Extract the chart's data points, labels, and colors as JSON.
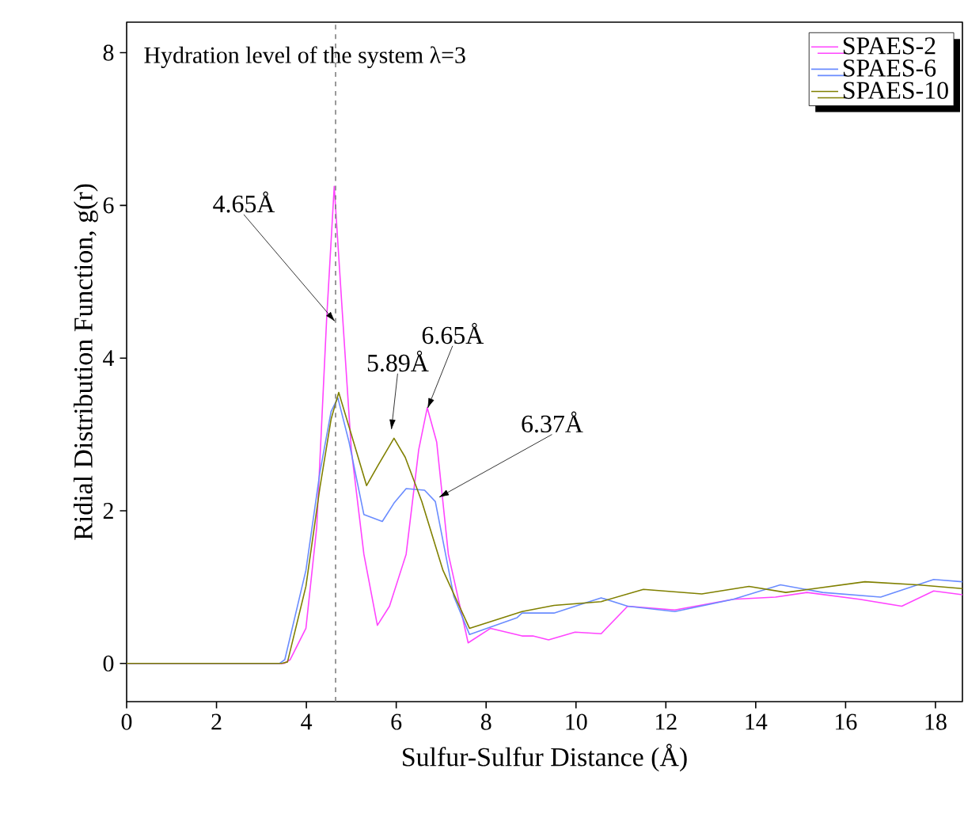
{
  "chart_data": {
    "type": "line",
    "xlabel": "Sulfur-Sulfur Distance (Å)",
    "ylabel": "Ridial Distribution Function, g(r)",
    "xlim": [
      0,
      18.6
    ],
    "xticks": [
      0,
      2,
      4,
      6,
      8,
      10,
      12,
      14,
      16,
      18
    ],
    "ylim": [
      -0.5,
      8.4
    ],
    "yticks": [
      0,
      2,
      4,
      6,
      8
    ],
    "grid": false,
    "legend": "top right",
    "marker": "none",
    "line_style": "solid",
    "series": [
      {
        "name": "SPAES-2",
        "color": "#ff44ff",
        "x": [
          0,
          3.5,
          3.64,
          3.99,
          4.23,
          4.45,
          4.62,
          4.8,
          5.0,
          5.28,
          5.58,
          5.85,
          6.22,
          6.5,
          6.69,
          6.9,
          7.16,
          7.6,
          8.1,
          8.8,
          9.04,
          9.39,
          9.98,
          10.56,
          11.15,
          12.2,
          13.5,
          14.44,
          15.14,
          16.31,
          17.25,
          17.96,
          18.6
        ],
        "values": [
          0,
          0,
          0.05,
          0.46,
          1.78,
          4.5,
          6.25,
          4.6,
          2.8,
          1.43,
          0.5,
          0.75,
          1.43,
          2.8,
          3.35,
          2.9,
          1.43,
          0.27,
          0.46,
          0.36,
          0.36,
          0.31,
          0.41,
          0.39,
          0.75,
          0.7,
          0.84,
          0.87,
          0.93,
          0.84,
          0.75,
          0.95,
          0.9
        ]
      },
      {
        "name": "SPAES-6",
        "color": "#6a8cff",
        "x": [
          0,
          3.4,
          3.52,
          3.99,
          4.3,
          4.55,
          4.7,
          4.95,
          5.28,
          5.69,
          5.95,
          6.22,
          6.63,
          6.87,
          7.28,
          7.63,
          8.69,
          8.8,
          9.51,
          10.56,
          11.15,
          12.2,
          13.5,
          14.55,
          15.49,
          16.78,
          17.96,
          18.6
        ],
        "values": [
          0,
          0,
          0.05,
          1.22,
          2.5,
          3.3,
          3.48,
          2.9,
          1.95,
          1.86,
          2.1,
          2.29,
          2.27,
          2.12,
          0.88,
          0.38,
          0.6,
          0.66,
          0.66,
          0.86,
          0.75,
          0.68,
          0.84,
          1.03,
          0.93,
          0.87,
          1.1,
          1.07
        ]
      },
      {
        "name": "SPAES-10",
        "color": "#808000",
        "x": [
          0,
          3.45,
          3.58,
          3.99,
          4.3,
          4.55,
          4.72,
          5.0,
          5.34,
          5.6,
          5.95,
          6.2,
          6.57,
          7.04,
          7.63,
          8.69,
          8.8,
          9.51,
          10.56,
          11.5,
          12.8,
          13.85,
          14.67,
          16.43,
          17.6,
          18.6
        ],
        "values": [
          0,
          0,
          0.02,
          1.01,
          2.3,
          3.2,
          3.55,
          3.0,
          2.33,
          2.6,
          2.95,
          2.7,
          2.12,
          1.22,
          0.46,
          0.66,
          0.68,
          0.76,
          0.81,
          0.97,
          0.91,
          1.01,
          0.93,
          1.07,
          1.03,
          0.98
        ]
      }
    ],
    "ref_lines": [
      {
        "axis": "x",
        "value": 4.65,
        "color": "#808080",
        "line_style": "dashed"
      }
    ],
    "annotations": [
      "Hydration level of the system λ=3",
      {
        "text": "4.65Å",
        "x": 4.65,
        "y": 4.47
      },
      {
        "text": "5.89Å",
        "x": 5.89,
        "y": 3.05
      },
      {
        "text": "6.65Å",
        "x": 6.69,
        "y": 3.33
      },
      {
        "text": "6.37Å",
        "x": 6.93,
        "y": 2.17
      }
    ]
  }
}
